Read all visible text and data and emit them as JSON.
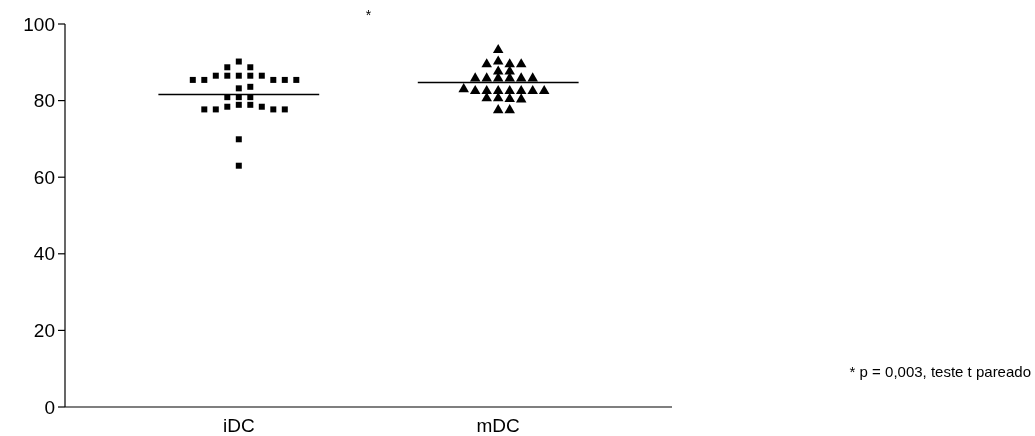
{
  "chart_data": {
    "type": "scatter",
    "categories": [
      "iDC",
      "mDC"
    ],
    "series": [
      {
        "color": "#000000",
        "marker": "square",
        "x": [
          "iDC",
          "iDC",
          "iDC",
          "iDC",
          "iDC",
          "iDC",
          "iDC",
          "iDC",
          "iDC",
          "iDC",
          "iDC",
          "iDC",
          "iDC",
          "iDC",
          "iDC",
          "iDC",
          "iDC",
          "iDC",
          "iDC",
          "iDC",
          "iDC",
          "iDC",
          "iDC",
          "iDC",
          "iDC",
          "iDC",
          "iDC",
          "iDC"
        ],
        "values": [
          90.2,
          88.7,
          88.7,
          86.5,
          86.5,
          86.5,
          86.5,
          86.5,
          85.4,
          85.4,
          85.4,
          85.4,
          85.4,
          83.2,
          83.6,
          80.9,
          80.9,
          80.9,
          78.9,
          78.9,
          78.4,
          78.4,
          77.7,
          77.7,
          77.7,
          77.7,
          69.9,
          63.0
        ]
      },
      {
        "color": "#000000",
        "marker": "triangle",
        "x": [
          "mDC",
          "mDC",
          "mDC",
          "mDC",
          "mDC",
          "mDC",
          "mDC",
          "mDC",
          "mDC",
          "mDC",
          "mDC",
          "mDC",
          "mDC",
          "mDC",
          "mDC",
          "mDC",
          "mDC",
          "mDC",
          "mDC",
          "mDC",
          "mDC",
          "mDC",
          "mDC",
          "mDC",
          "mDC",
          "mDC",
          "mDC"
        ],
        "values": [
          93.2,
          90.2,
          89.5,
          89.5,
          89.5,
          87.6,
          87.6,
          85.8,
          85.8,
          85.8,
          85.8,
          85.8,
          85.8,
          82.5,
          82.5,
          82.5,
          82.5,
          82.5,
          82.5,
          83.0,
          82.5,
          80.6,
          80.4,
          80.6,
          80.3,
          77.5,
          77.5
        ]
      }
    ],
    "ref_lines": [
      {
        "axis": "y",
        "value": 81.6
      },
      {
        "axis": "y",
        "value": 84.7
      }
    ],
    "ylim": [
      0,
      100
    ],
    "yticks": [
      0,
      20,
      40,
      60,
      80,
      100
    ],
    "annotations": [
      "*",
      "* p = 0,003, teste t pareado"
    ]
  }
}
